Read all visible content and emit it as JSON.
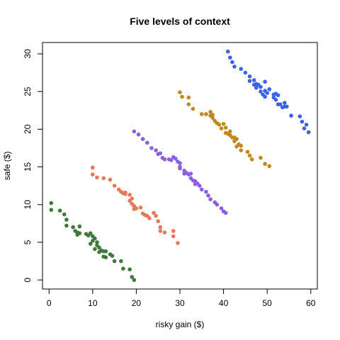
{
  "chart_data": {
    "type": "scatter",
    "title": "Five levels of context",
    "xlabel": "risky gain ($)",
    "ylabel": "safe ($)",
    "xlim": [
      -1.5,
      61.5
    ],
    "ylim": [
      -1.2,
      31.5
    ],
    "xticks": [
      0,
      10,
      20,
      30,
      40,
      50,
      60
    ],
    "yticks": [
      0,
      5,
      10,
      15,
      20,
      25,
      30
    ],
    "grid": false,
    "series": [
      {
        "color": "#3f7a3a",
        "points": [
          [
            0.5,
            10.2
          ],
          [
            0.5,
            9.3
          ],
          [
            2.5,
            9.2
          ],
          [
            3.5,
            8.7
          ],
          [
            4,
            8
          ],
          [
            4,
            7.2
          ],
          [
            5.5,
            7
          ],
          [
            6,
            6.5
          ],
          [
            6.5,
            6.3
          ],
          [
            6.5,
            6
          ],
          [
            7,
            7.1
          ],
          [
            7,
            6.2
          ],
          [
            8.5,
            6.1
          ],
          [
            9,
            5.9
          ],
          [
            9.5,
            6.2
          ],
          [
            10,
            5.8
          ],
          [
            10,
            5.2
          ],
          [
            9.5,
            4.8
          ],
          [
            10.5,
            5.5
          ],
          [
            11,
            5
          ],
          [
            11,
            4.6
          ],
          [
            10.5,
            4.1
          ],
          [
            11.5,
            4.3
          ],
          [
            12,
            3.9
          ],
          [
            11.5,
            3.7
          ],
          [
            12.5,
            3.8
          ],
          [
            13,
            3.8
          ],
          [
            12.5,
            3.1
          ],
          [
            13,
            3
          ],
          [
            14,
            3.4
          ],
          [
            14.5,
            3.2
          ],
          [
            15,
            2.5
          ],
          [
            16.5,
            2.5
          ],
          [
            17,
            1.5
          ],
          [
            18.5,
            1.4
          ],
          [
            19,
            0.4
          ],
          [
            19.5,
            0
          ]
        ]
      },
      {
        "color": "#e5795a",
        "points": [
          [
            10,
            14.9
          ],
          [
            10,
            14
          ],
          [
            11,
            13.6
          ],
          [
            12.5,
            13.5
          ],
          [
            14,
            13.3
          ],
          [
            15,
            12.5
          ],
          [
            16,
            12
          ],
          [
            16.5,
            11.7
          ],
          [
            17,
            11.5
          ],
          [
            17.5,
            11.6
          ],
          [
            17.5,
            11.4
          ],
          [
            18.5,
            11.3
          ],
          [
            19,
            10.8
          ],
          [
            18.5,
            10.5
          ],
          [
            19,
            10.1
          ],
          [
            19.5,
            9.8
          ],
          [
            19.5,
            9.4
          ],
          [
            20,
            9.5
          ],
          [
            21,
            9.6
          ],
          [
            21.5,
            8.8
          ],
          [
            22,
            8.6
          ],
          [
            22.5,
            8.5
          ],
          [
            23,
            8.2
          ],
          [
            24,
            8.9
          ],
          [
            24.5,
            8.5
          ],
          [
            25,
            7.8
          ],
          [
            25.5,
            7
          ],
          [
            25.5,
            6.5
          ],
          [
            26.5,
            6.3
          ],
          [
            28.5,
            6.5
          ],
          [
            28.5,
            5.8
          ],
          [
            29.5,
            4.9
          ]
        ]
      },
      {
        "color": "#8d5fe0",
        "points": [
          [
            19.5,
            19.7
          ],
          [
            20.5,
            19.3
          ],
          [
            21.5,
            18.7
          ],
          [
            22.5,
            18.2
          ],
          [
            23.5,
            17.5
          ],
          [
            24.5,
            17.2
          ],
          [
            25,
            16.7
          ],
          [
            25.5,
            16.8
          ],
          [
            26,
            16.2
          ],
          [
            26.5,
            16
          ],
          [
            27.5,
            16
          ],
          [
            28,
            15.9
          ],
          [
            28.5,
            16.3
          ],
          [
            29,
            16.1
          ],
          [
            29.5,
            15.7
          ],
          [
            30,
            15.5
          ],
          [
            30,
            14.8
          ],
          [
            31,
            14.5
          ],
          [
            31,
            14.1
          ],
          [
            31.5,
            14.2
          ],
          [
            32,
            14
          ],
          [
            32.5,
            14.1
          ],
          [
            32.5,
            13.5
          ],
          [
            33,
            13.2
          ],
          [
            33.5,
            13.1
          ],
          [
            33.5,
            12.7
          ],
          [
            34,
            12.8
          ],
          [
            34.5,
            12.5
          ],
          [
            35,
            12
          ],
          [
            36,
            11.7
          ],
          [
            36.5,
            11.2
          ],
          [
            37,
            10.7
          ],
          [
            38,
            10.3
          ],
          [
            38.5,
            10
          ],
          [
            39.5,
            9.5
          ],
          [
            40,
            9.1
          ],
          [
            40.5,
            8.9
          ],
          [
            30,
            15
          ]
        ]
      },
      {
        "color": "#c08a1e",
        "points": [
          [
            30,
            24.9
          ],
          [
            30.5,
            24.3
          ],
          [
            32,
            24.2
          ],
          [
            32,
            23.3
          ],
          [
            33,
            22.7
          ],
          [
            35,
            22
          ],
          [
            36,
            22
          ],
          [
            37,
            22.3
          ],
          [
            37,
            21.8
          ],
          [
            37.5,
            21.5
          ],
          [
            37.5,
            21.9
          ],
          [
            38,
            21.1
          ],
          [
            38.5,
            20.8
          ],
          [
            39,
            20.6
          ],
          [
            39.5,
            20.1
          ],
          [
            40,
            20.7
          ],
          [
            40.5,
            20.2
          ],
          [
            40.5,
            19.5
          ],
          [
            41,
            19.4
          ],
          [
            41.5,
            19.7
          ],
          [
            41.5,
            19.2
          ],
          [
            42,
            18.9
          ],
          [
            42.5,
            18.9
          ],
          [
            42.5,
            18.4
          ],
          [
            43,
            18.7
          ],
          [
            43.5,
            18
          ],
          [
            43,
            17.7
          ],
          [
            44,
            17.8
          ],
          [
            44,
            17.2
          ],
          [
            45.5,
            17
          ],
          [
            46,
            16.5
          ],
          [
            46.5,
            16
          ],
          [
            48.5,
            16.2
          ],
          [
            49.5,
            15.4
          ],
          [
            50.5,
            15.1
          ]
        ]
      },
      {
        "color": "#3a63ea",
        "points": [
          [
            41,
            30.3
          ],
          [
            41.5,
            29.5
          ],
          [
            42,
            28.9
          ],
          [
            42.5,
            28.3
          ],
          [
            44,
            28
          ],
          [
            45,
            27.5
          ],
          [
            46,
            27
          ],
          [
            46,
            26.4
          ],
          [
            47,
            26.5
          ],
          [
            47,
            25.9
          ],
          [
            47.5,
            25.5
          ],
          [
            48,
            25.9
          ],
          [
            48.5,
            25.6
          ],
          [
            48.5,
            25
          ],
          [
            49,
            24.6
          ],
          [
            49.5,
            24.3
          ],
          [
            49.5,
            25.1
          ],
          [
            49.5,
            26.3
          ],
          [
            50,
            24.8
          ],
          [
            50.5,
            25.3
          ],
          [
            51.5,
            24.6
          ],
          [
            51.5,
            24.2
          ],
          [
            52,
            24.7
          ],
          [
            52,
            23.9
          ],
          [
            52.5,
            24.5
          ],
          [
            52.5,
            23.3
          ],
          [
            53,
            23.3
          ],
          [
            53.5,
            22.9
          ],
          [
            54,
            23.5
          ],
          [
            54,
            23
          ],
          [
            54.5,
            23
          ],
          [
            55.5,
            21.8
          ],
          [
            57.5,
            21.7
          ],
          [
            58,
            21
          ],
          [
            59,
            20.6
          ],
          [
            59.5,
            19.6
          ],
          [
            58.5,
            20.1
          ],
          [
            47.5,
            26
          ]
        ]
      }
    ]
  }
}
